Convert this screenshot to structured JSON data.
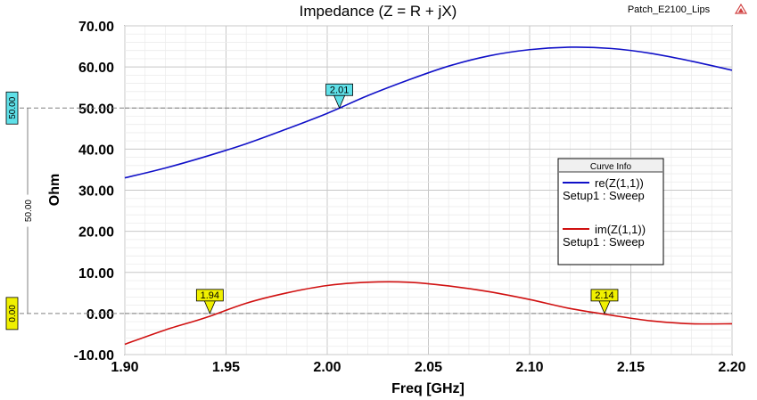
{
  "chart_data": {
    "type": "line",
    "title": "Impedance (Z = R + jX)",
    "project_label": "Patch_E2100_Lips",
    "xlabel": "Freq [GHz]",
    "ylabel": "Ohm",
    "xlim": [
      1.9,
      2.2
    ],
    "ylim": [
      -10,
      70
    ],
    "x_ticks": [
      "1.90",
      "1.95",
      "2.00",
      "2.05",
      "2.10",
      "2.15",
      "2.20"
    ],
    "y_ticks": [
      "70.00",
      "60.00",
      "50.00",
      "40.00",
      "30.00",
      "20.00",
      "10.00",
      "0.00",
      "-10.00"
    ],
    "grid": true,
    "legend": {
      "title": "Curve Info",
      "entries": [
        {
          "name": "re(Z(1,1))",
          "subtitle": "Setup1 : Sweep",
          "color": "#1010c8"
        },
        {
          "name": "im(Z(1,1))",
          "subtitle": "Setup1 : Sweep",
          "color": "#d01010"
        }
      ]
    },
    "x": [
      1.9,
      1.92,
      1.94,
      1.96,
      1.98,
      2.0,
      2.02,
      2.04,
      2.06,
      2.08,
      2.1,
      2.12,
      2.14,
      2.16,
      2.18,
      2.2
    ],
    "series": [
      {
        "name": "re(Z(1,1))",
        "color": "#1010c8",
        "values": [
          33.0,
          35.4,
          38.2,
          41.3,
          44.9,
          48.7,
          53.0,
          56.8,
          60.2,
          62.7,
          64.2,
          64.8,
          64.5,
          63.3,
          61.4,
          59.2
        ]
      },
      {
        "name": "im(Z(1,1))",
        "color": "#d01010",
        "values": [
          -7.5,
          -4.0,
          -1.0,
          2.5,
          5.0,
          6.8,
          7.6,
          7.6,
          6.7,
          5.3,
          3.4,
          1.2,
          -0.4,
          -1.8,
          -2.5,
          -2.5
        ]
      }
    ],
    "reference_lines": [
      {
        "label": "50.00",
        "value": 50.0,
        "color": "#5fe0e8"
      },
      {
        "label": "0.00",
        "value": 0.0,
        "color": "#f0f000"
      }
    ],
    "span_label": "50.00",
    "markers": [
      {
        "label": "2.01",
        "x": 2.006,
        "y": 50.0,
        "color": "#5fe0e8"
      },
      {
        "label": "1.94",
        "x": 1.942,
        "y": 0.0,
        "color": "#f0f000"
      },
      {
        "label": "2.14",
        "x": 2.137,
        "y": 0.0,
        "color": "#f0f000"
      }
    ]
  }
}
